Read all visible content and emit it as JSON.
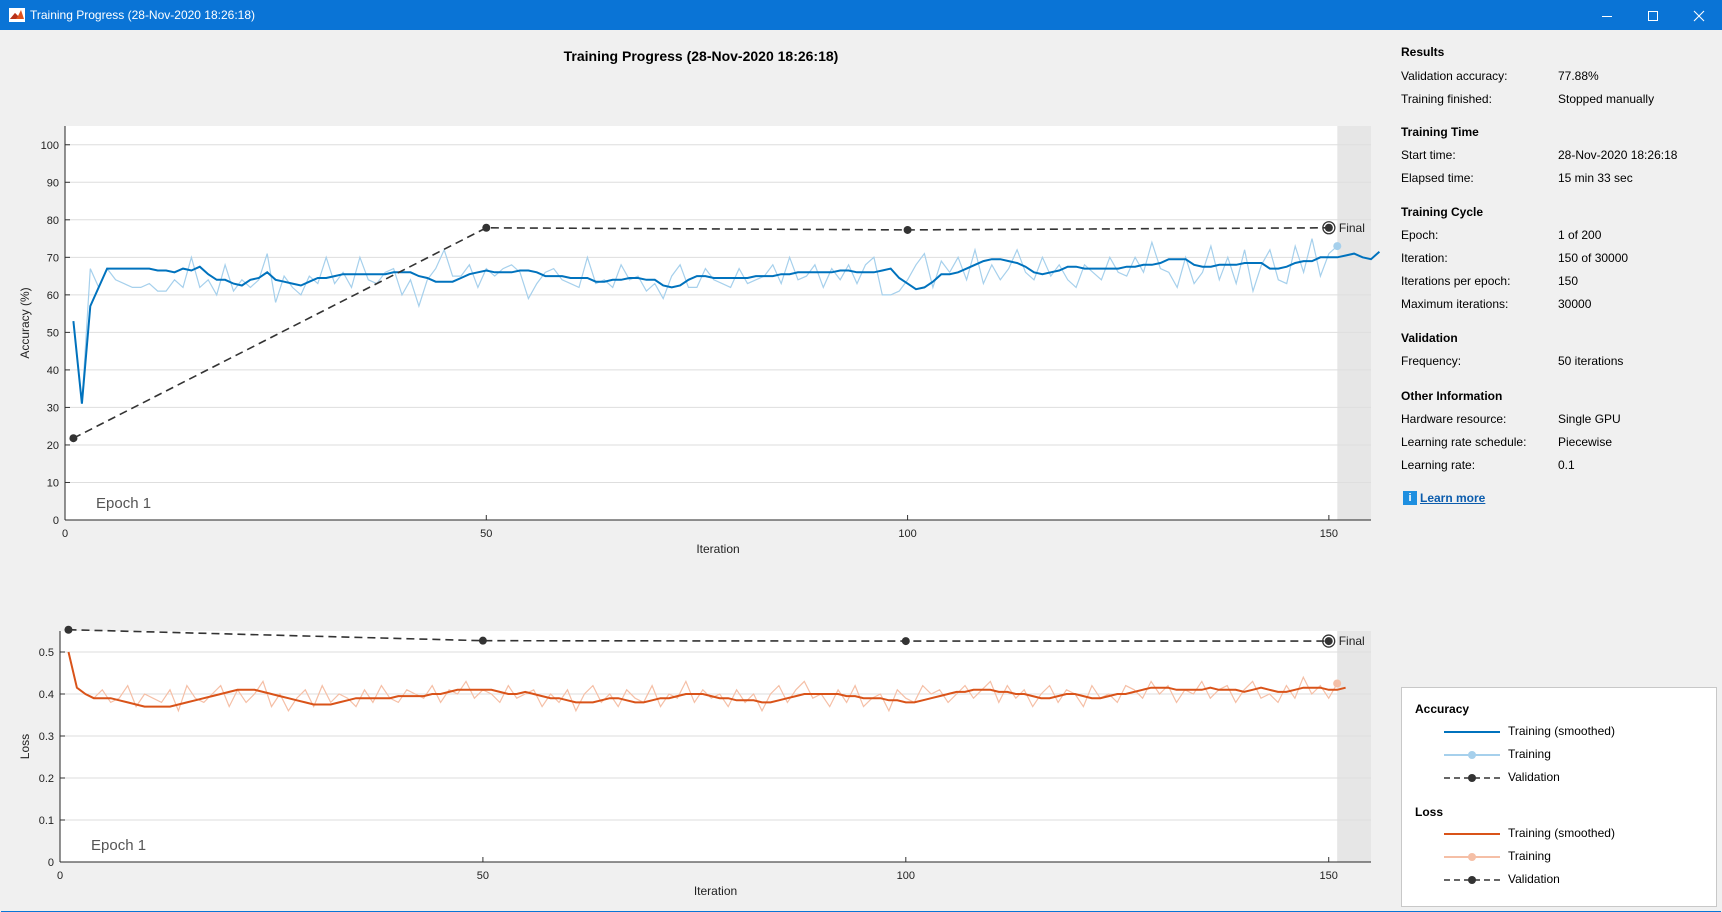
{
  "window": {
    "title": "Training Progress (28-Nov-2020 18:26:18)"
  },
  "plot_title": "Training Progress (28-Nov-2020 18:26:18)",
  "colors": {
    "accuracy": "#0072bd",
    "accuracy_light": "#a6d0ec",
    "loss": "#d95319",
    "loss_light": "#f5bfa6",
    "validation": "#333333"
  },
  "results": {
    "heading": "Results",
    "rows": [
      {
        "label": "Validation accuracy:",
        "value": "77.88%"
      },
      {
        "label": "Training finished:",
        "value": "Stopped manually"
      }
    ]
  },
  "training_time": {
    "heading": "Training Time",
    "rows": [
      {
        "label": "Start time:",
        "value": "28-Nov-2020 18:26:18"
      },
      {
        "label": "Elapsed time:",
        "value": "15 min 33 sec"
      }
    ]
  },
  "training_cycle": {
    "heading": "Training Cycle",
    "rows": [
      {
        "label": "Epoch:",
        "value": "1 of 200"
      },
      {
        "label": "Iteration:",
        "value": "150 of 30000"
      },
      {
        "label": "Iterations per epoch:",
        "value": "150"
      },
      {
        "label": "Maximum iterations:",
        "value": "30000"
      }
    ]
  },
  "validation": {
    "heading": "Validation",
    "rows": [
      {
        "label": "Frequency:",
        "value": "50 iterations"
      }
    ]
  },
  "other": {
    "heading": "Other Information",
    "rows": [
      {
        "label": "Hardware resource:",
        "value": "Single GPU"
      },
      {
        "label": "Learning rate schedule:",
        "value": "Piecewise"
      },
      {
        "label": "Learning rate:",
        "value": "0.1"
      }
    ]
  },
  "learn_more": {
    "icon": "info-icon",
    "label": "Learn more"
  },
  "legend": {
    "accuracy_heading": "Accuracy",
    "loss_heading": "Loss",
    "items": [
      "Training (smoothed)",
      "Training",
      "Validation"
    ]
  },
  "chart_data": [
    {
      "type": "line",
      "ylabel": "Accuracy (%)",
      "xlabel": "Iteration",
      "xlim": [
        0,
        155
      ],
      "ylim": [
        0,
        105
      ],
      "xticks": [
        0,
        50,
        100,
        150
      ],
      "yticks": [
        0,
        10,
        20,
        30,
        40,
        50,
        60,
        70,
        80,
        90,
        100
      ],
      "grid": "horizontal",
      "epoch_label": "Epoch 1",
      "final_label": "Final",
      "series": [
        {
          "name": "Training (smoothed)",
          "values": [
            53,
            31,
            57,
            62,
            67,
            67,
            67,
            67,
            67,
            67,
            66.5,
            66.5,
            66,
            67,
            66.5,
            67.5,
            65.5,
            64,
            64,
            63,
            62.5,
            64,
            64.5,
            66,
            64,
            63.5,
            63,
            62.5,
            63.5,
            64.5,
            64.5,
            65,
            65.5,
            65.5,
            65.5,
            65.5,
            65.5,
            65.5,
            66,
            66,
            66,
            65,
            64.5,
            63.5,
            63.5,
            63.5,
            64.5,
            65.5,
            66,
            66.5,
            66,
            66,
            66,
            66.5,
            66.5,
            66,
            65,
            65,
            65,
            64.5,
            64.5,
            64.5,
            63.5,
            63.5,
            64,
            64,
            64.5,
            64.5,
            64,
            64,
            62.5,
            62,
            62.5,
            64,
            65,
            65,
            64.5,
            64.5,
            64.5,
            64.5,
            64.5,
            65,
            65,
            65,
            65.5,
            65.5,
            66,
            66,
            66,
            66,
            66,
            66.5,
            66.5,
            66,
            66,
            66,
            66.5,
            67,
            64.5,
            63,
            61.5,
            62,
            63.5,
            65.5,
            65.5,
            66,
            67,
            68,
            69,
            69.5,
            69.5,
            69,
            68.5,
            67.5,
            66,
            65.5,
            66,
            66.5,
            67.5,
            67.5,
            67,
            67,
            67,
            67,
            67,
            67.5,
            67.5,
            68,
            68,
            68.5,
            69.5,
            69.5,
            69.5,
            68,
            67.5,
            67.5,
            68,
            68,
            68,
            68.5,
            68.5,
            68.5,
            67,
            67,
            67.5,
            68.5,
            69,
            69,
            70,
            70,
            70,
            70.5,
            71,
            70,
            69.5,
            71.5
          ]
        },
        {
          "name": "Training",
          "values": [
            53,
            31,
            67,
            62,
            67,
            64,
            63,
            62,
            62,
            63,
            61,
            61,
            64,
            62,
            70,
            62,
            64,
            60,
            68,
            61,
            64,
            62,
            64,
            71,
            58,
            65,
            62,
            60,
            65,
            63,
            70,
            63,
            66,
            62,
            70,
            64,
            63,
            66,
            67,
            60,
            64,
            57,
            64,
            67,
            72,
            65,
            65,
            68,
            62,
            67,
            65,
            67,
            68,
            66,
            59,
            63,
            66,
            67,
            64,
            63,
            62,
            70,
            63,
            64,
            62,
            68,
            64,
            65,
            61,
            63,
            59,
            65,
            68,
            62,
            62,
            67,
            64,
            63,
            62,
            67,
            63,
            64,
            65,
            68,
            63,
            70,
            64,
            65,
            68,
            62,
            67,
            64,
            68,
            63,
            68,
            70,
            60,
            60,
            61,
            64,
            68,
            71,
            62,
            69,
            66,
            70,
            64,
            72,
            63,
            68,
            64,
            67,
            72,
            66,
            64,
            70,
            65,
            68,
            64,
            62,
            68,
            66,
            64,
            70,
            66,
            65,
            70,
            66,
            74,
            67,
            66,
            62,
            70,
            63,
            66,
            73,
            64,
            70,
            63,
            72,
            61,
            68,
            72,
            64,
            63,
            73,
            66,
            75,
            65,
            71,
            73
          ]
        },
        {
          "name": "Validation",
          "x": [
            1,
            50,
            100,
            150
          ],
          "values": [
            21.8,
            77.88,
            77.3,
            77.88
          ]
        }
      ]
    },
    {
      "type": "line",
      "ylabel": "Loss",
      "xlabel": "Iteration",
      "xlim": [
        0,
        155
      ],
      "ylim": [
        0,
        0.55
      ],
      "xticks": [
        0,
        50,
        100,
        150
      ],
      "yticks": [
        0,
        0.1,
        0.2,
        0.3,
        0.4,
        0.5
      ],
      "grid": "horizontal",
      "epoch_label": "Epoch 1",
      "final_label": "Final",
      "series": [
        {
          "name": "Training (smoothed)",
          "values": [
            0.5,
            0.415,
            0.4,
            0.39,
            0.39,
            0.39,
            0.385,
            0.38,
            0.375,
            0.37,
            0.37,
            0.37,
            0.37,
            0.375,
            0.38,
            0.385,
            0.39,
            0.395,
            0.4,
            0.405,
            0.41,
            0.41,
            0.41,
            0.405,
            0.4,
            0.395,
            0.39,
            0.385,
            0.38,
            0.375,
            0.375,
            0.375,
            0.38,
            0.385,
            0.39,
            0.39,
            0.39,
            0.39,
            0.39,
            0.395,
            0.395,
            0.395,
            0.395,
            0.4,
            0.4,
            0.405,
            0.41,
            0.41,
            0.41,
            0.41,
            0.41,
            0.405,
            0.4,
            0.4,
            0.405,
            0.4,
            0.395,
            0.39,
            0.39,
            0.385,
            0.38,
            0.38,
            0.38,
            0.385,
            0.39,
            0.39,
            0.385,
            0.38,
            0.38,
            0.385,
            0.39,
            0.39,
            0.395,
            0.4,
            0.4,
            0.4,
            0.395,
            0.39,
            0.39,
            0.385,
            0.385,
            0.385,
            0.38,
            0.38,
            0.385,
            0.39,
            0.395,
            0.4,
            0.4,
            0.4,
            0.4,
            0.4,
            0.395,
            0.395,
            0.39,
            0.39,
            0.39,
            0.385,
            0.385,
            0.38,
            0.38,
            0.385,
            0.39,
            0.395,
            0.4,
            0.405,
            0.405,
            0.41,
            0.41,
            0.41,
            0.405,
            0.405,
            0.4,
            0.4,
            0.395,
            0.39,
            0.39,
            0.395,
            0.4,
            0.4,
            0.395,
            0.39,
            0.39,
            0.395,
            0.4,
            0.4,
            0.405,
            0.41,
            0.415,
            0.415,
            0.415,
            0.41,
            0.41,
            0.41,
            0.41,
            0.415,
            0.41,
            0.41,
            0.41,
            0.405,
            0.41,
            0.415,
            0.41,
            0.405,
            0.405,
            0.41,
            0.415,
            0.415,
            0.415,
            0.41,
            0.41,
            0.415
          ]
        },
        {
          "name": "Training",
          "values": [
            0.5,
            0.415,
            0.4,
            0.39,
            0.41,
            0.38,
            0.39,
            0.42,
            0.37,
            0.4,
            0.39,
            0.38,
            0.41,
            0.36,
            0.42,
            0.39,
            0.38,
            0.4,
            0.42,
            0.37,
            0.41,
            0.38,
            0.4,
            0.43,
            0.37,
            0.4,
            0.36,
            0.39,
            0.41,
            0.37,
            0.42,
            0.38,
            0.4,
            0.39,
            0.37,
            0.41,
            0.38,
            0.42,
            0.39,
            0.38,
            0.41,
            0.4,
            0.39,
            0.42,
            0.38,
            0.41,
            0.4,
            0.43,
            0.39,
            0.41,
            0.4,
            0.38,
            0.42,
            0.39,
            0.4,
            0.41,
            0.37,
            0.4,
            0.38,
            0.41,
            0.36,
            0.4,
            0.42,
            0.38,
            0.4,
            0.37,
            0.41,
            0.39,
            0.38,
            0.42,
            0.37,
            0.4,
            0.39,
            0.43,
            0.38,
            0.41,
            0.39,
            0.4,
            0.37,
            0.41,
            0.38,
            0.4,
            0.36,
            0.4,
            0.42,
            0.38,
            0.41,
            0.43,
            0.39,
            0.4,
            0.37,
            0.41,
            0.38,
            0.42,
            0.37,
            0.39,
            0.4,
            0.36,
            0.41,
            0.39,
            0.38,
            0.42,
            0.4,
            0.41,
            0.38,
            0.4,
            0.42,
            0.39,
            0.41,
            0.43,
            0.38,
            0.42,
            0.39,
            0.41,
            0.37,
            0.4,
            0.42,
            0.38,
            0.41,
            0.4,
            0.37,
            0.42,
            0.39,
            0.4,
            0.38,
            0.42,
            0.41,
            0.39,
            0.43,
            0.4,
            0.42,
            0.38,
            0.41,
            0.4,
            0.43,
            0.39,
            0.41,
            0.42,
            0.38,
            0.41,
            0.43,
            0.39,
            0.4,
            0.38,
            0.42,
            0.39,
            0.44,
            0.4,
            0.42,
            0.39,
            0.425
          ]
        },
        {
          "name": "Validation",
          "x": [
            1,
            50,
            100,
            150
          ],
          "values": [
            0.553,
            0.527,
            0.526,
            0.526
          ]
        }
      ]
    }
  ]
}
